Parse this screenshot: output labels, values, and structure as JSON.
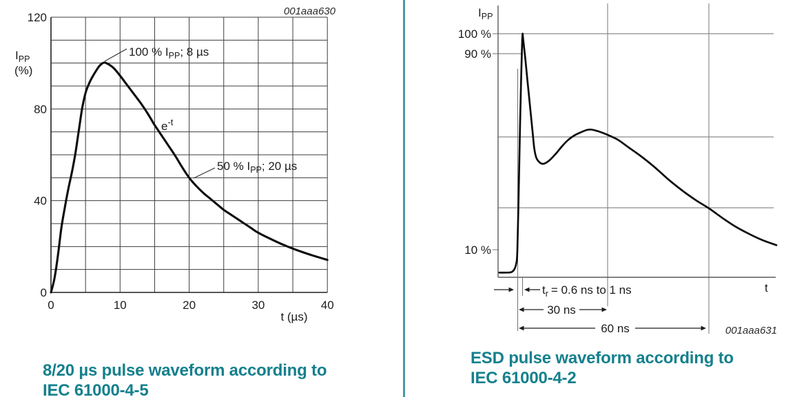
{
  "page": {
    "background": "#ffffff",
    "divider_color": "#4a97a5",
    "caption_color": "#15808d"
  },
  "charts": {
    "left": {
      "figure_id": "001aaa630",
      "y_axis_label": {
        "pre": "I",
        "sub": "PP"
      },
      "y_axis_label_line2": "(%)",
      "x_axis_label": "t (µs)",
      "ann_peak": {
        "pre": "100 % I",
        "sub": "PP",
        "post": "; 8 µs"
      },
      "ann_decay": {
        "pre": "e",
        "sup": "-t"
      },
      "ann_half": {
        "pre": "50 % I",
        "sub": "PP",
        "post": "; 20 µs"
      },
      "caption_line1": "8/20 µs pulse waveform according to",
      "caption_line2": "IEC 61000-4-5"
    },
    "right": {
      "figure_id": "001aaa631",
      "y_axis_label": {
        "pre": "I",
        "sub": "PP"
      },
      "tick_100": "100 %",
      "tick_90": "90 %",
      "tick_10": "10 %",
      "x_axis_label": "t",
      "ann_tr": {
        "pre": "t",
        "sub": "r",
        "post": "= 0.6 ns to 1 ns"
      },
      "ann_30": "30 ns",
      "ann_60": "60 ns",
      "caption_line1": "ESD pulse waveform according to",
      "caption_line2": "IEC 61000-4-2"
    }
  },
  "chart_data": [
    {
      "id": "surge-8-20us",
      "type": "line",
      "title": "8/20 µs pulse waveform according to IEC 61000-4-5",
      "figure_id": "001aaa630",
      "xlabel": "t (µs)",
      "ylabel": "IPP (%)",
      "xlim": [
        0,
        40
      ],
      "ylim": [
        0,
        120
      ],
      "xticks": [
        0,
        10,
        20,
        30,
        40
      ],
      "yticks": [
        0,
        40,
        80,
        120
      ],
      "x_gridline_step": 5,
      "y_gridline_step": 10,
      "grid": true,
      "legend": false,
      "annotations": [
        {
          "text": "100 % IPP; 8 µs",
          "points_to": {
            "t_us": 8,
            "percent": 100
          }
        },
        {
          "text": "e-t",
          "meaning": "exponential decay"
        },
        {
          "text": "50 % IPP; 20 µs",
          "points_to": {
            "t_us": 20,
            "percent": 50
          }
        }
      ],
      "series": [
        {
          "name": "8/20 µs surge current (% of IPP)",
          "points": [
            [
              0,
              0
            ],
            [
              0.5,
              6
            ],
            [
              1,
              16
            ],
            [
              1.5,
              28
            ],
            [
              2,
              37
            ],
            [
              2.5,
              45
            ],
            [
              3,
              52
            ],
            [
              3.5,
              60
            ],
            [
              4,
              70
            ],
            [
              4.5,
              80
            ],
            [
              5,
              87
            ],
            [
              5.5,
              91
            ],
            [
              6,
              94
            ],
            [
              6.5,
              96.5
            ],
            [
              7,
              98.7
            ],
            [
              7.5,
              100
            ],
            [
              8,
              100
            ],
            [
              9,
              98
            ],
            [
              10,
              94.5
            ],
            [
              11,
              90.5
            ],
            [
              12,
              86.5
            ],
            [
              13,
              82.5
            ],
            [
              14,
              78
            ],
            [
              15,
              73
            ],
            [
              16,
              68.5
            ],
            [
              17,
              64
            ],
            [
              18,
              59.5
            ],
            [
              19,
              54.5
            ],
            [
              20,
              50
            ],
            [
              21,
              46.5
            ],
            [
              22,
              43.5
            ],
            [
              23,
              41
            ],
            [
              24,
              38.5
            ],
            [
              25,
              36
            ],
            [
              26,
              34
            ],
            [
              27,
              32
            ],
            [
              28,
              30
            ],
            [
              29,
              28
            ],
            [
              30,
              26
            ],
            [
              32,
              23
            ],
            [
              34,
              20.3
            ],
            [
              36,
              18
            ],
            [
              38,
              16
            ],
            [
              40,
              14.2
            ]
          ]
        }
      ]
    },
    {
      "id": "esd-iec-61000-4-2",
      "type": "line",
      "title": "ESD pulse waveform according to IEC 61000-4-2",
      "figure_id": "001aaa631",
      "xlabel": "t",
      "x_unit": "ns",
      "ylabel": "IPP",
      "ytick_labels": [
        "100 %",
        "90 %",
        "10 %"
      ],
      "x_range_ns": [
        -6,
        80
      ],
      "grid": "partial",
      "legend": false,
      "time_markers_ns": [
        {
          "label": "tr = 0.6 ns to 1 ns",
          "from_percent": 10,
          "to": "peak"
        },
        {
          "label": "30 ns",
          "value": 30
        },
        {
          "label": "60 ns",
          "value": 60
        }
      ],
      "series": [
        {
          "name": "ESD discharge current (% of IPP)",
          "points": [
            [
              -6,
              0.8
            ],
            [
              -3.5,
              0.8
            ],
            [
              -2,
              1
            ],
            [
              -1,
              2.2
            ],
            [
              -0.4,
              4.5
            ],
            [
              0,
              10
            ],
            [
              0.5,
              38
            ],
            [
              0.9,
              62
            ],
            [
              1.3,
              84
            ],
            [
              1.6,
              97
            ],
            [
              1.75,
              100
            ],
            [
              1.9,
              98
            ],
            [
              2.6,
              90
            ],
            [
              3.4,
              80
            ],
            [
              4.2,
              70
            ],
            [
              5,
              60
            ],
            [
              5.6,
              52.5
            ],
            [
              6.3,
              48.5
            ],
            [
              7.2,
              46.8
            ],
            [
              8.2,
              46
            ],
            [
              9.2,
              46.2
            ],
            [
              11,
              47.8
            ],
            [
              13,
              50.5
            ],
            [
              15,
              53.5
            ],
            [
              17,
              56
            ],
            [
              19,
              57.8
            ],
            [
              21,
              59
            ],
            [
              23,
              60
            ],
            [
              24.5,
              60.2
            ],
            [
              26,
              59.8
            ],
            [
              28,
              59
            ],
            [
              30,
              58
            ],
            [
              33,
              56
            ],
            [
              36,
              53
            ],
            [
              40,
              49
            ],
            [
              44,
              44.5
            ],
            [
              48,
              39.5
            ],
            [
              52,
              35
            ],
            [
              56,
              31
            ],
            [
              60,
              27.5
            ],
            [
              64,
              23.5
            ],
            [
              68,
              19.8
            ],
            [
              72,
              16.8
            ],
            [
              76,
              14.2
            ],
            [
              80,
              12.2
            ]
          ]
        }
      ]
    }
  ]
}
